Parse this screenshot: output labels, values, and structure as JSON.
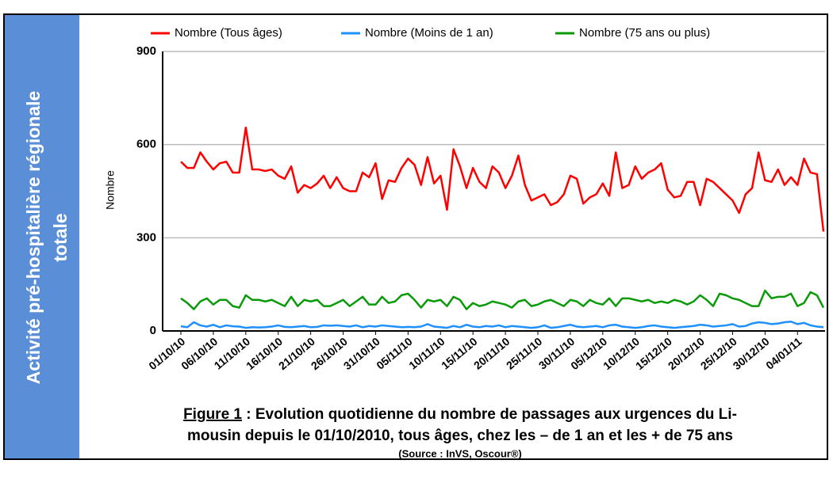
{
  "sidebar": {
    "lines": [
      "Activité pré-hospitalière régionale",
      "totale"
    ]
  },
  "chart_data": {
    "type": "line",
    "ylabel": "Nombre",
    "categories": [
      "01/10/10",
      null,
      null,
      null,
      null,
      "06/10/10",
      null,
      null,
      null,
      null,
      "11/10/10",
      null,
      null,
      null,
      null,
      "16/10/10",
      null,
      null,
      null,
      null,
      "21/10/10",
      null,
      null,
      null,
      null,
      "26/10/10",
      null,
      null,
      null,
      null,
      "31/10/10",
      null,
      null,
      null,
      null,
      "05/11/10",
      null,
      null,
      null,
      null,
      "10/11/10",
      null,
      null,
      null,
      null,
      "15/11/10",
      null,
      null,
      null,
      null,
      "20/11/10",
      null,
      null,
      null,
      null,
      "25/11/10",
      null,
      null,
      null,
      null,
      "30/11/10",
      null,
      null,
      null,
      null,
      "05/12/10",
      null,
      null,
      null,
      null,
      "10/12/10",
      null,
      null,
      null,
      null,
      "15/12/10",
      null,
      null,
      null,
      null,
      "20/12/10",
      null,
      null,
      null,
      null,
      "25/12/10",
      null,
      null,
      null,
      null,
      "30/12/10",
      null,
      null,
      null,
      null,
      "04/01/11",
      null,
      null,
      null,
      null
    ],
    "series": [
      {
        "name": "Nombre (Tous âges)",
        "color": "#ff0000",
        "values": [
          545,
          525,
          525,
          575,
          545,
          520,
          540,
          545,
          510,
          510,
          655,
          520,
          520,
          515,
          520,
          500,
          490,
          530,
          445,
          470,
          460,
          475,
          500,
          460,
          495,
          460,
          450,
          450,
          510,
          495,
          540,
          425,
          485,
          480,
          525,
          555,
          535,
          470,
          560,
          475,
          500,
          390,
          585,
          530,
          460,
          525,
          480,
          460,
          530,
          510,
          460,
          500,
          565,
          470,
          420,
          430,
          440,
          405,
          415,
          440,
          500,
          490,
          410,
          430,
          440,
          475,
          435,
          575,
          460,
          470,
          530,
          490,
          510,
          520,
          540,
          455,
          430,
          435,
          480,
          480,
          405,
          490,
          480,
          460,
          440,
          420,
          380,
          440,
          460,
          575,
          485,
          480,
          520,
          470,
          495,
          470,
          555,
          510,
          505,
          320
        ]
      },
      {
        "name": "Nombre (Moins de 1 an)",
        "color": "#1e90ff",
        "values": [
          15,
          12,
          28,
          18,
          14,
          20,
          12,
          18,
          15,
          14,
          10,
          12,
          11,
          12,
          14,
          18,
          13,
          12,
          14,
          16,
          12,
          13,
          18,
          17,
          18,
          16,
          14,
          18,
          12,
          16,
          14,
          18,
          16,
          14,
          12,
          13,
          12,
          14,
          22,
          14,
          12,
          10,
          16,
          12,
          20,
          14,
          12,
          16,
          14,
          18,
          12,
          16,
          14,
          12,
          10,
          12,
          18,
          10,
          12,
          16,
          20,
          14,
          12,
          14,
          16,
          12,
          18,
          20,
          14,
          12,
          10,
          12,
          16,
          18,
          14,
          12,
          10,
          12,
          14,
          16,
          20,
          18,
          14,
          16,
          18,
          22,
          14,
          16,
          24,
          28,
          26,
          22,
          24,
          28,
          30,
          22,
          26,
          18,
          14,
          12
        ]
      },
      {
        "name": "Nombre (75 ans ou plus)",
        "color": "#0a9a0a",
        "values": [
          105,
          90,
          70,
          95,
          105,
          85,
          100,
          100,
          80,
          75,
          115,
          100,
          100,
          95,
          100,
          90,
          80,
          110,
          80,
          100,
          95,
          100,
          80,
          80,
          90,
          100,
          80,
          95,
          110,
          85,
          85,
          110,
          90,
          95,
          115,
          120,
          100,
          75,
          100,
          95,
          100,
          80,
          110,
          100,
          70,
          90,
          80,
          85,
          95,
          90,
          85,
          75,
          95,
          100,
          80,
          85,
          95,
          100,
          90,
          80,
          100,
          95,
          80,
          100,
          90,
          85,
          105,
          80,
          105,
          105,
          100,
          95,
          100,
          90,
          95,
          90,
          100,
          95,
          85,
          95,
          115,
          100,
          80,
          120,
          115,
          105,
          100,
          90,
          80,
          80,
          130,
          105,
          110,
          110,
          120,
          80,
          90,
          125,
          115,
          75
        ]
      }
    ],
    "ylim": [
      0,
      900
    ],
    "yticks": [
      0,
      300,
      600,
      900
    ],
    "grid": true
  },
  "caption": {
    "figure": "Figure 1",
    "line1": " : Evolution quotidienne du nombre de passages aux urgences du Li-",
    "line2": "mousin depuis le 01/10/2010, tous âges, chez les – de 1 an et les  + de 75 ans",
    "source": "(Source : InVS, Oscour®)"
  }
}
